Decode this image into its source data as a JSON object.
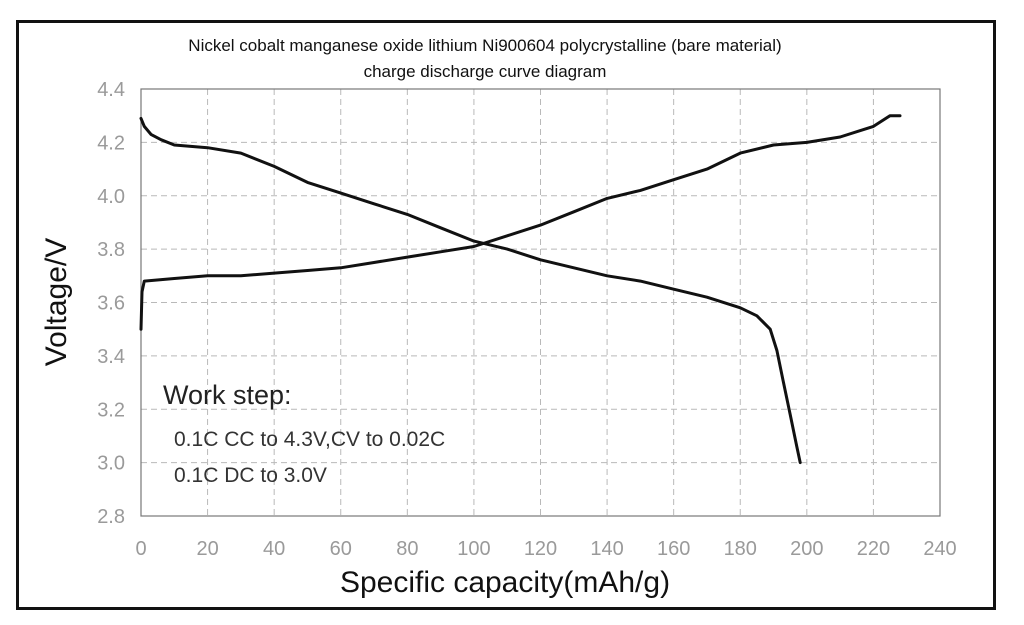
{
  "chart_data": {
    "type": "line",
    "title_lines": [
      "Nickel cobalt manganese oxide lithium Ni900604 polycrystalline (bare material)",
      "charge discharge curve diagram"
    ],
    "xlabel": "Specific capacity(mAh/g)",
    "ylabel": "Voltage/V",
    "xlim": [
      0,
      240
    ],
    "ylim": [
      2.8,
      4.4
    ],
    "xticks": [
      "0",
      "20",
      "40",
      "60",
      "80",
      "100",
      "120",
      "140",
      "160",
      "180",
      "200",
      "220",
      "240"
    ],
    "yticks": [
      "2.8",
      "3.0",
      "3.2",
      "3.4",
      "3.6",
      "3.8",
      "4.0",
      "4.2",
      "4.4"
    ],
    "grid": true,
    "annotation": {
      "heading": "Work step:",
      "lines": [
        "0.1C CC to 4.3V,CV to 0.02C",
        "0.1C DC to 3.0V"
      ]
    },
    "series": [
      {
        "points": [
          [
            0,
            3.5
          ],
          [
            0.3,
            3.64
          ],
          [
            1,
            3.68
          ],
          [
            10,
            3.69
          ],
          [
            20,
            3.7
          ],
          [
            30,
            3.7
          ],
          [
            40,
            3.71
          ],
          [
            50,
            3.72
          ],
          [
            60,
            3.73
          ],
          [
            70,
            3.75
          ],
          [
            80,
            3.77
          ],
          [
            90,
            3.79
          ],
          [
            100,
            3.81
          ],
          [
            110,
            3.85
          ],
          [
            120,
            3.89
          ],
          [
            130,
            3.94
          ],
          [
            140,
            3.99
          ],
          [
            150,
            4.02
          ],
          [
            160,
            4.06
          ],
          [
            170,
            4.1
          ],
          [
            180,
            4.16
          ],
          [
            190,
            4.19
          ],
          [
            200,
            4.2
          ],
          [
            210,
            4.22
          ],
          [
            220,
            4.26
          ],
          [
            225,
            4.3
          ],
          [
            228,
            4.3
          ]
        ]
      },
      {
        "points": [
          [
            0,
            4.29
          ],
          [
            1,
            4.26
          ],
          [
            3,
            4.23
          ],
          [
            6,
            4.21
          ],
          [
            10,
            4.19
          ],
          [
            20,
            4.18
          ],
          [
            30,
            4.16
          ],
          [
            40,
            4.11
          ],
          [
            50,
            4.05
          ],
          [
            60,
            4.01
          ],
          [
            70,
            3.97
          ],
          [
            80,
            3.93
          ],
          [
            90,
            3.88
          ],
          [
            100,
            3.83
          ],
          [
            110,
            3.8
          ],
          [
            120,
            3.76
          ],
          [
            130,
            3.73
          ],
          [
            140,
            3.7
          ],
          [
            150,
            3.68
          ],
          [
            160,
            3.65
          ],
          [
            170,
            3.62
          ],
          [
            180,
            3.58
          ],
          [
            185,
            3.55
          ],
          [
            189,
            3.5
          ],
          [
            191,
            3.42
          ],
          [
            193,
            3.3
          ],
          [
            195,
            3.18
          ],
          [
            197,
            3.06
          ],
          [
            198,
            3.0
          ]
        ]
      }
    ]
  }
}
